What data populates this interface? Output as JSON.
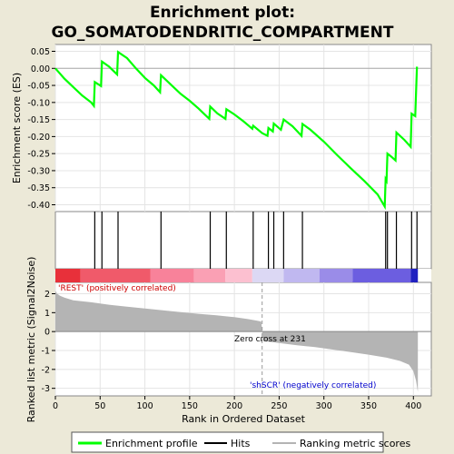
{
  "chart_data": {
    "type": "line",
    "title_line1": "Enrichment plot:",
    "title_line2": "GO_SOMATODENDRITIC_COMPARTMENT",
    "top_panel": {
      "ylabel": "Enrichment score (ES)",
      "ylim": [
        -0.42,
        0.07
      ],
      "yticks": [
        0.05,
        0.0,
        -0.05,
        -0.1,
        -0.15,
        -0.2,
        -0.25,
        -0.3,
        -0.35,
        -0.4
      ],
      "ytick_labels": [
        "0.05",
        "0.00",
        "-0.05",
        "-0.10",
        "-0.15",
        "-0.20",
        "-0.25",
        "-0.30",
        "-0.35",
        "-0.40"
      ],
      "es_curve": [
        [
          0,
          0.0
        ],
        [
          10,
          -0.03
        ],
        [
          20,
          -0.055
        ],
        [
          30,
          -0.08
        ],
        [
          40,
          -0.1
        ],
        [
          43,
          -0.11
        ],
        [
          44,
          -0.04
        ],
        [
          51,
          -0.052
        ],
        [
          52,
          0.02
        ],
        [
          60,
          0.005
        ],
        [
          69,
          -0.018
        ],
        [
          70,
          0.048
        ],
        [
          80,
          0.03
        ],
        [
          90,
          0.0
        ],
        [
          100,
          -0.028
        ],
        [
          110,
          -0.05
        ],
        [
          117,
          -0.07
        ],
        [
          118,
          -0.02
        ],
        [
          130,
          -0.05
        ],
        [
          140,
          -0.075
        ],
        [
          150,
          -0.095
        ],
        [
          160,
          -0.118
        ],
        [
          172,
          -0.148
        ],
        [
          173,
          -0.112
        ],
        [
          181,
          -0.132
        ],
        [
          190,
          -0.148
        ],
        [
          191,
          -0.12
        ],
        [
          200,
          -0.135
        ],
        [
          210,
          -0.155
        ],
        [
          220,
          -0.177
        ],
        [
          221,
          -0.168
        ],
        [
          231,
          -0.19
        ],
        [
          237,
          -0.198
        ],
        [
          238,
          -0.175
        ],
        [
          243,
          -0.185
        ],
        [
          244,
          -0.162
        ],
        [
          252,
          -0.18
        ],
        [
          255,
          -0.15
        ],
        [
          265,
          -0.17
        ],
        [
          275,
          -0.198
        ],
        [
          276,
          -0.163
        ],
        [
          285,
          -0.18
        ],
        [
          300,
          -0.215
        ],
        [
          315,
          -0.255
        ],
        [
          330,
          -0.293
        ],
        [
          345,
          -0.33
        ],
        [
          360,
          -0.37
        ],
        [
          368,
          -0.405
        ],
        [
          369,
          -0.325
        ],
        [
          370,
          -0.33
        ],
        [
          371,
          -0.25
        ],
        [
          375,
          -0.258
        ],
        [
          380,
          -0.27
        ],
        [
          381,
          -0.188
        ],
        [
          390,
          -0.21
        ],
        [
          397,
          -0.23
        ],
        [
          398,
          -0.133
        ],
        [
          402,
          -0.14
        ],
        [
          404,
          0.005
        ]
      ],
      "series_name": "Enrichment profile",
      "color": "#00ff00"
    },
    "hits": [
      44,
      52,
      70,
      118,
      173,
      191,
      221,
      238,
      244,
      255,
      276,
      369,
      371,
      381,
      398,
      404
    ],
    "hits_name": "Hits",
    "color_bar": {
      "segments": [
        {
          "from": 0,
          "to": 28,
          "color": "#e8303a"
        },
        {
          "from": 28,
          "to": 106,
          "color": "#f05a6a"
        },
        {
          "from": 106,
          "to": 155,
          "color": "#f8829a"
        },
        {
          "from": 155,
          "to": 190,
          "color": "#faa0b4"
        },
        {
          "from": 190,
          "to": 220,
          "color": "#fcc0d0"
        },
        {
          "from": 220,
          "to": 255,
          "color": "#dcd8f4"
        },
        {
          "from": 255,
          "to": 295,
          "color": "#c0b8f0"
        },
        {
          "from": 295,
          "to": 332,
          "color": "#9a8ce8"
        },
        {
          "from": 332,
          "to": 397,
          "color": "#6c5ee0"
        },
        {
          "from": 397,
          "to": 405,
          "color": "#2020c0"
        }
      ]
    },
    "bottom_panel": {
      "ylabel": "Ranked list metric (Signal2Noise)",
      "ylim": [
        -3.4,
        2.6
      ],
      "yticks": [
        2,
        1,
        0,
        -1,
        -2,
        -3
      ],
      "ytick_labels": [
        "2",
        "1",
        "0",
        "-1",
        "-2",
        "-3"
      ],
      "metric_curve": [
        [
          0,
          2.15
        ],
        [
          2,
          2.0
        ],
        [
          5,
          1.9
        ],
        [
          10,
          1.8
        ],
        [
          20,
          1.65
        ],
        [
          40,
          1.55
        ],
        [
          60,
          1.42
        ],
        [
          80,
          1.32
        ],
        [
          100,
          1.22
        ],
        [
          120,
          1.12
        ],
        [
          140,
          1.03
        ],
        [
          160,
          0.94
        ],
        [
          180,
          0.86
        ],
        [
          200,
          0.76
        ],
        [
          215,
          0.66
        ],
        [
          225,
          0.58
        ],
        [
          230,
          0.53
        ],
        [
          231,
          0.0
        ],
        [
          232,
          -0.5
        ],
        [
          250,
          -0.6
        ],
        [
          270,
          -0.72
        ],
        [
          290,
          -0.82
        ],
        [
          310,
          -0.95
        ],
        [
          330,
          -1.08
        ],
        [
          350,
          -1.22
        ],
        [
          370,
          -1.38
        ],
        [
          385,
          -1.55
        ],
        [
          395,
          -1.75
        ],
        [
          400,
          -2.1
        ],
        [
          403,
          -2.6
        ],
        [
          405,
          -3.2
        ]
      ],
      "series_name": "Ranking metric scores",
      "color": "#b4b4b4",
      "zero_cross_rank": 231,
      "zero_cross_label": "Zero cross at 231",
      "pos_label": "'REST' (positively correlated)",
      "neg_label": "'shSCR' (negatively correlated)"
    },
    "xlabel": "Rank in Ordered Dataset",
    "xlim": [
      0,
      420
    ],
    "xticks": [
      0,
      50,
      100,
      150,
      200,
      250,
      300,
      350,
      400
    ],
    "xtick_labels": [
      "0",
      "50",
      "100",
      "150",
      "200",
      "250",
      "300",
      "350",
      "400"
    ],
    "grid": true
  }
}
